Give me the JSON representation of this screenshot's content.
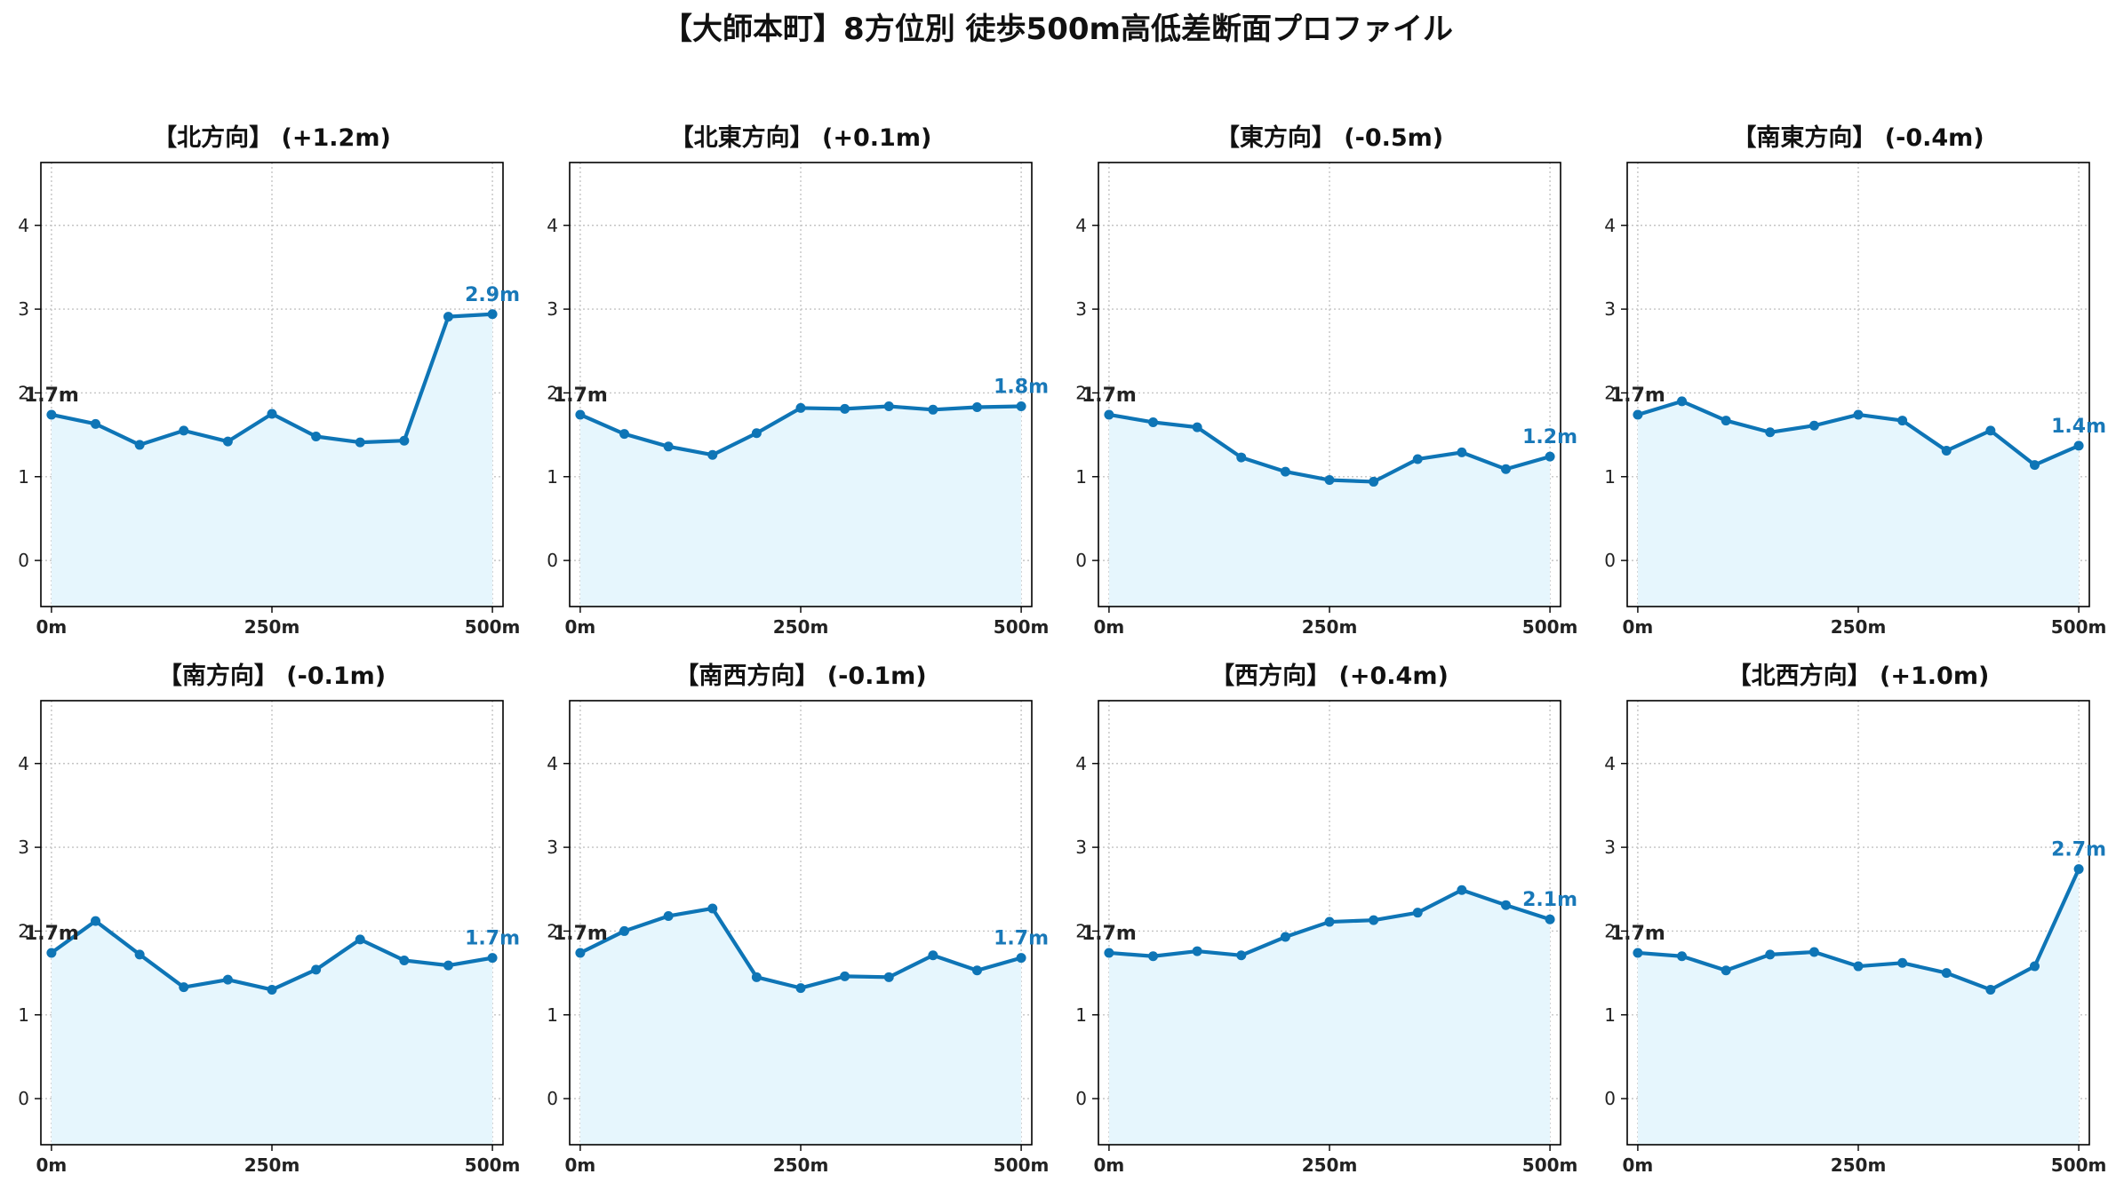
{
  "figure": {
    "title": "【大師本町】8方位別 徒歩500m高低差断面プロファイル",
    "line_color": "#0e75b6",
    "fill_color": "#e6f6fd",
    "end_label_color": "#1878b8",
    "grid": true
  },
  "chart_data": [
    {
      "type": "line",
      "title": "【北方向】 (+1.2m)",
      "x": [
        0,
        50,
        100,
        150,
        200,
        250,
        300,
        350,
        400,
        450,
        500
      ],
      "values": [
        1.74,
        1.63,
        1.38,
        1.55,
        1.42,
        1.75,
        1.48,
        1.41,
        1.43,
        2.91,
        2.94
      ],
      "start_label": "1.7m",
      "end_label": "2.9m",
      "xticks": [
        "0m",
        "250m",
        "500m"
      ],
      "xtick_values": [
        0,
        250,
        500
      ],
      "yticks": [
        "0",
        "1",
        "2",
        "3",
        "4"
      ],
      "ytick_values": [
        0,
        1,
        2,
        3,
        4
      ],
      "xlim": [
        -12,
        512
      ],
      "ylim": [
        -0.55,
        4.75
      ]
    },
    {
      "type": "line",
      "title": "【北東方向】 (+0.1m)",
      "x": [
        0,
        50,
        100,
        150,
        200,
        250,
        300,
        350,
        400,
        450,
        500
      ],
      "values": [
        1.74,
        1.51,
        1.36,
        1.26,
        1.52,
        1.82,
        1.81,
        1.84,
        1.8,
        1.83,
        1.84
      ],
      "start_label": "1.7m",
      "end_label": "1.8m",
      "xticks": [
        "0m",
        "250m",
        "500m"
      ],
      "xtick_values": [
        0,
        250,
        500
      ],
      "yticks": [
        "0",
        "1",
        "2",
        "3",
        "4"
      ],
      "ytick_values": [
        0,
        1,
        2,
        3,
        4
      ],
      "xlim": [
        -12,
        512
      ],
      "ylim": [
        -0.55,
        4.75
      ]
    },
    {
      "type": "line",
      "title": "【東方向】 (-0.5m)",
      "x": [
        0,
        50,
        100,
        150,
        200,
        250,
        300,
        350,
        400,
        450,
        500
      ],
      "values": [
        1.74,
        1.65,
        1.59,
        1.23,
        1.06,
        0.96,
        0.94,
        1.21,
        1.29,
        1.09,
        1.24
      ],
      "start_label": "1.7m",
      "end_label": "1.2m",
      "xticks": [
        "0m",
        "250m",
        "500m"
      ],
      "xtick_values": [
        0,
        250,
        500
      ],
      "yticks": [
        "0",
        "1",
        "2",
        "3",
        "4"
      ],
      "ytick_values": [
        0,
        1,
        2,
        3,
        4
      ],
      "xlim": [
        -12,
        512
      ],
      "ylim": [
        -0.55,
        4.75
      ]
    },
    {
      "type": "line",
      "title": "【南東方向】 (-0.4m)",
      "x": [
        0,
        50,
        100,
        150,
        200,
        250,
        300,
        350,
        400,
        450,
        500
      ],
      "values": [
        1.74,
        1.9,
        1.67,
        1.53,
        1.61,
        1.74,
        1.67,
        1.31,
        1.55,
        1.14,
        1.37
      ],
      "start_label": "1.7m",
      "end_label": "1.4m",
      "xticks": [
        "0m",
        "250m",
        "500m"
      ],
      "xtick_values": [
        0,
        250,
        500
      ],
      "yticks": [
        "0",
        "1",
        "2",
        "3",
        "4"
      ],
      "ytick_values": [
        0,
        1,
        2,
        3,
        4
      ],
      "xlim": [
        -12,
        512
      ],
      "ylim": [
        -0.55,
        4.75
      ]
    },
    {
      "type": "line",
      "title": "【南方向】 (-0.1m)",
      "x": [
        0,
        50,
        100,
        150,
        200,
        250,
        300,
        350,
        400,
        450,
        500
      ],
      "values": [
        1.74,
        2.12,
        1.72,
        1.33,
        1.42,
        1.3,
        1.54,
        1.9,
        1.65,
        1.59,
        1.68
      ],
      "start_label": "1.7m",
      "end_label": "1.7m",
      "xticks": [
        "0m",
        "250m",
        "500m"
      ],
      "xtick_values": [
        0,
        250,
        500
      ],
      "yticks": [
        "0",
        "1",
        "2",
        "3",
        "4"
      ],
      "ytick_values": [
        0,
        1,
        2,
        3,
        4
      ],
      "xlim": [
        -12,
        512
      ],
      "ylim": [
        -0.55,
        4.75
      ]
    },
    {
      "type": "line",
      "title": "【南西方向】 (-0.1m)",
      "x": [
        0,
        50,
        100,
        150,
        200,
        250,
        300,
        350,
        400,
        450,
        500
      ],
      "values": [
        1.74,
        2.0,
        2.18,
        2.27,
        1.45,
        1.32,
        1.46,
        1.45,
        1.71,
        1.53,
        1.68
      ],
      "start_label": "1.7m",
      "end_label": "1.7m",
      "xticks": [
        "0m",
        "250m",
        "500m"
      ],
      "xtick_values": [
        0,
        250,
        500
      ],
      "yticks": [
        "0",
        "1",
        "2",
        "3",
        "4"
      ],
      "ytick_values": [
        0,
        1,
        2,
        3,
        4
      ],
      "xlim": [
        -12,
        512
      ],
      "ylim": [
        -0.55,
        4.75
      ]
    },
    {
      "type": "line",
      "title": "【西方向】 (+0.4m)",
      "x": [
        0,
        50,
        100,
        150,
        200,
        250,
        300,
        350,
        400,
        450,
        500
      ],
      "values": [
        1.74,
        1.7,
        1.76,
        1.71,
        1.93,
        2.11,
        2.13,
        2.22,
        2.49,
        2.31,
        2.14
      ],
      "start_label": "1.7m",
      "end_label": "2.1m",
      "xticks": [
        "0m",
        "250m",
        "500m"
      ],
      "xtick_values": [
        0,
        250,
        500
      ],
      "yticks": [
        "0",
        "1",
        "2",
        "3",
        "4"
      ],
      "ytick_values": [
        0,
        1,
        2,
        3,
        4
      ],
      "xlim": [
        -12,
        512
      ],
      "ylim": [
        -0.55,
        4.75
      ]
    },
    {
      "type": "line",
      "title": "【北西方向】 (+1.0m)",
      "x": [
        0,
        50,
        100,
        150,
        200,
        250,
        300,
        350,
        400,
        450,
        500
      ],
      "values": [
        1.74,
        1.7,
        1.53,
        1.72,
        1.75,
        1.58,
        1.62,
        1.5,
        1.3,
        1.58,
        2.74
      ],
      "start_label": "1.7m",
      "end_label": "2.7m",
      "xticks": [
        "0m",
        "250m",
        "500m"
      ],
      "xtick_values": [
        0,
        250,
        500
      ],
      "yticks": [
        "0",
        "1",
        "2",
        "3",
        "4"
      ],
      "ytick_values": [
        0,
        1,
        2,
        3,
        4
      ],
      "xlim": [
        -12,
        512
      ],
      "ylim": [
        -0.55,
        4.75
      ]
    }
  ]
}
